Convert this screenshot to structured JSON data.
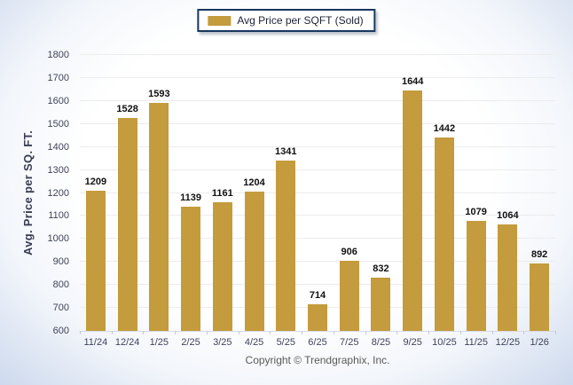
{
  "page": {
    "copyright": "Copyright © Trendgraphix, Inc."
  },
  "legend": {
    "label": "Avg Price per SQFT (Sold)"
  },
  "chart_data": {
    "type": "bar",
    "title": "",
    "xlabel": "",
    "ylabel": "Avg. Price per SQ. FT.",
    "categories": [
      "11/24",
      "12/24",
      "1/25",
      "2/25",
      "3/25",
      "4/25",
      "5/25",
      "6/25",
      "7/25",
      "8/25",
      "9/25",
      "10/25",
      "11/25",
      "12/25",
      "1/26"
    ],
    "values": [
      1209,
      1528,
      1593,
      1139,
      1161,
      1204,
      1341,
      714,
      906,
      832,
      1644,
      1442,
      1079,
      1064,
      892
    ],
    "series_name": "Avg Price per SQFT (Sold)",
    "ylim": [
      600,
      1800
    ],
    "ytick_step": 100,
    "grid": "horizontal",
    "legend_position": "top-center",
    "value_labels": true,
    "bar_color": "#C49B3D"
  },
  "colors": {
    "bar": "#C49B3D",
    "legend_border": "#17375E",
    "axis_text": "#3F4458",
    "value_label": "#111111",
    "gridline": "#ECECEC",
    "baseline": "#D6DAE2",
    "copyright_text": "#595959",
    "background_edge": "#CDD9ED"
  }
}
